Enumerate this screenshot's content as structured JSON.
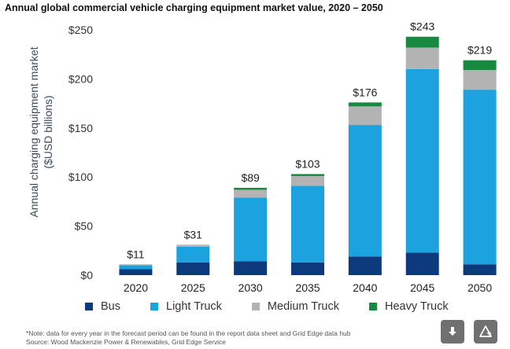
{
  "chart_data": {
    "type": "bar",
    "stacked": true,
    "title": "Annual global commercial vehicle charging equipment market value, 2020 – 2050",
    "ylabel": "Annual charging equipment market ($USD billions)",
    "ylabel_lines": [
      "Annual charging equipment market",
      "($USD billions)"
    ],
    "xlabel": "",
    "ylim": [
      0,
      250
    ],
    "yticks": [
      0,
      50,
      100,
      150,
      200,
      250
    ],
    "ytick_labels": [
      "$0",
      "$50",
      "$100",
      "$150",
      "$200",
      "$250"
    ],
    "categories": [
      "2020",
      "2025",
      "2030",
      "2035",
      "2040",
      "2045",
      "2050"
    ],
    "totals": [
      "$11",
      "$31",
      "$89",
      "$103",
      "$176",
      "$243",
      "$219"
    ],
    "series": [
      {
        "name": "Bus",
        "color": "#0d3a7d",
        "values": [
          6,
          13,
          14,
          13,
          19,
          23,
          11
        ]
      },
      {
        "name": "Light Truck",
        "color": "#1ca2df",
        "values": [
          4,
          16,
          65,
          78,
          134,
          187,
          178
        ]
      },
      {
        "name": "Medium Truck",
        "color": "#b3b3b3",
        "values": [
          1,
          2,
          8,
          10,
          19,
          22,
          20
        ]
      },
      {
        "name": "Heavy Truck",
        "color": "#178a3f",
        "values": [
          0,
          0,
          2,
          2,
          4,
          11,
          10
        ]
      }
    ],
    "legend_position": "bottom"
  },
  "footer": {
    "note": "*Note: data for every year in the forecast period can be found in the report data sheet and Grid Edge data hub",
    "source": "Source: Wood Mackenzie Power & Renewables, Grid Edge Service"
  },
  "buttons": {
    "download_icon": "download-icon",
    "share_icon": "share-icon"
  }
}
